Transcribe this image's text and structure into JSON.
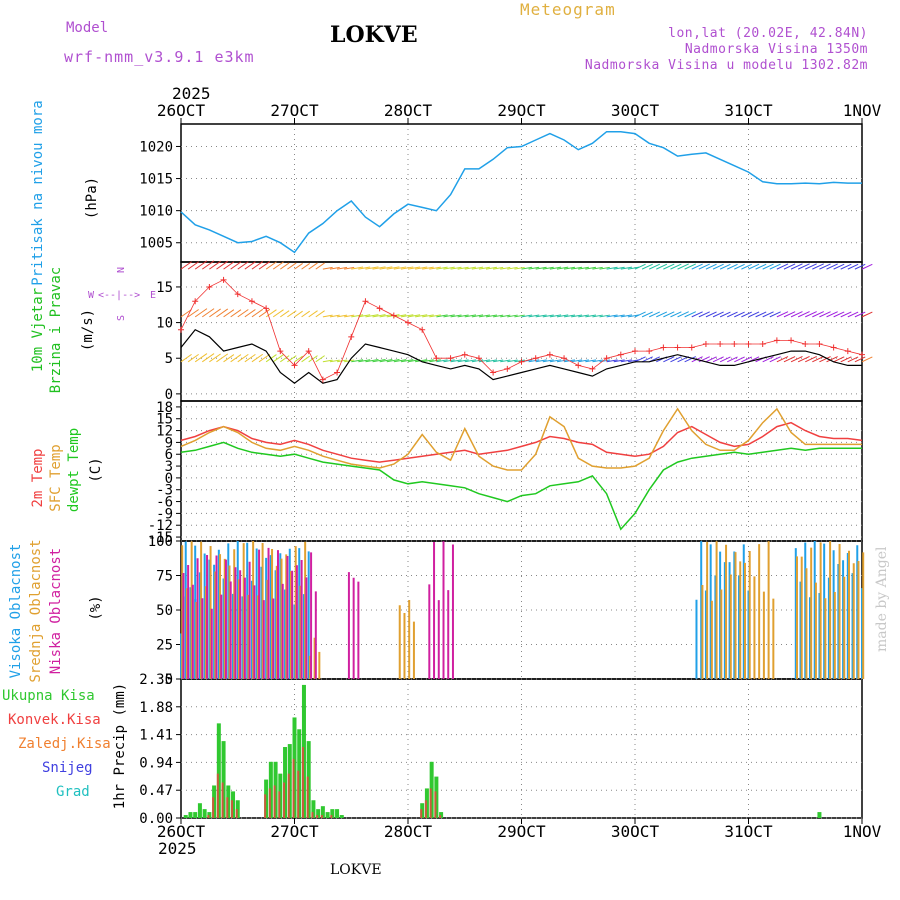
{
  "header": {
    "model_label": "Model",
    "model_name": "wrf-nmm_v3.9.1 e3km",
    "station": "LOKVE",
    "product": "Meteogram",
    "lonlat": "lon,lat (20.02E, 42.84N)",
    "elevation": "Nadmorska Visina 1350m",
    "model_elevation": "Nadmorska Visina u modelu 1302.82m",
    "year_top": "2025",
    "year_bottom": "2025",
    "footer_station": "LOKVE",
    "credit": "made by Angel"
  },
  "colors": {
    "pressure": "#20a0e8",
    "wind_speed_line": "#000000",
    "gust_marker": "#f03030",
    "t2m": "#f04040",
    "sfc": "#e0a030",
    "dewpt": "#20c820",
    "cloud_high": "#20a0e8",
    "cloud_mid": "#e0a030",
    "cloud_low": "#d020a0",
    "precip_total": "#30c830",
    "precip_conv": "#f04040",
    "precip_freeze": "#f08030",
    "precip_snow": "#4040e0",
    "precip_hail": "#20c0c0"
  },
  "chart_data": [
    {
      "type": "line",
      "panel": "pressure",
      "title": "Pritisak na nivou mora",
      "ylabel": "(hPa)",
      "x_ticks": [
        "26OCT",
        "27OCT",
        "28OCT",
        "29OCT",
        "30OCT",
        "31OCT",
        "1NOV"
      ],
      "yticks": [
        1005,
        1010,
        1015,
        1020
      ],
      "ylim": [
        1002,
        1023.5
      ],
      "x_hours": [
        0,
        3,
        6,
        9,
        12,
        15,
        18,
        21,
        24,
        27,
        30,
        33,
        36,
        39,
        42,
        45,
        48,
        51,
        54,
        57,
        60,
        63,
        66,
        69,
        72,
        75,
        78,
        81,
        84,
        87,
        90,
        93,
        96,
        99,
        102,
        105,
        108,
        111,
        114,
        117,
        120,
        123,
        126,
        129,
        132,
        135,
        138,
        141,
        144
      ],
      "values": [
        1009.8,
        1007.8,
        1007.0,
        1006.0,
        1005.0,
        1005.2,
        1006.0,
        1005.0,
        1003.5,
        1006.5,
        1008.0,
        1010.0,
        1011.5,
        1009.0,
        1007.5,
        1009.5,
        1011.0,
        1010.5,
        1010.0,
        1012.5,
        1016.5,
        1016.5,
        1018.0,
        1019.8,
        1020.0,
        1021.0,
        1022.0,
        1021.0,
        1019.5,
        1020.5,
        1022.3,
        1022.3,
        1022.0,
        1020.5,
        1019.8,
        1018.5,
        1018.8,
        1019.0,
        1018.0,
        1017.0,
        1016.0,
        1014.5,
        1014.2,
        1014.2,
        1014.3,
        1014.2,
        1014.4,
        1014.3,
        1014.3
      ]
    },
    {
      "type": "line",
      "panel": "wind",
      "title": "10m Vjetar Brzina i Pravac",
      "ylabel": "(m/s)",
      "yticks": [
        0,
        5,
        10,
        15
      ],
      "ylim": [
        -1,
        18.5
      ],
      "direction_legend": [
        "N",
        "W",
        "E",
        "S"
      ],
      "x_hours": [
        0,
        3,
        6,
        9,
        12,
        15,
        18,
        21,
        24,
        27,
        30,
        33,
        36,
        39,
        42,
        45,
        48,
        51,
        54,
        57,
        60,
        63,
        66,
        69,
        72,
        75,
        78,
        81,
        84,
        87,
        90,
        93,
        96,
        99,
        102,
        105,
        108,
        111,
        114,
        117,
        120,
        123,
        126,
        129,
        132,
        135,
        138,
        141,
        144
      ],
      "series": [
        {
          "name": "speed",
          "values": [
            6.5,
            9.0,
            8.0,
            6.0,
            6.5,
            7.0,
            6.0,
            3.0,
            1.5,
            3.0,
            1.5,
            2.0,
            5.0,
            7.0,
            6.5,
            6.0,
            5.5,
            4.5,
            4.0,
            3.5,
            4.0,
            3.5,
            2.0,
            2.5,
            3.0,
            3.5,
            4.0,
            3.5,
            3.0,
            2.5,
            3.5,
            4.0,
            4.5,
            4.5,
            5.0,
            5.5,
            5.0,
            4.5,
            4.0,
            4.0,
            4.5,
            5.0,
            5.5,
            6.0,
            6.0,
            5.5,
            4.5,
            4.0,
            4.0
          ]
        },
        {
          "name": "gust",
          "values": [
            9.0,
            13.0,
            15.0,
            16.0,
            14.0,
            13.0,
            12.0,
            6.0,
            4.0,
            6.0,
            2.0,
            3.0,
            8.0,
            13.0,
            12.0,
            11.0,
            10.0,
            9.0,
            5.0,
            5.0,
            5.5,
            5.0,
            3.0,
            3.5,
            4.5,
            5.0,
            5.5,
            5.0,
            4.0,
            3.5,
            5.0,
            5.5,
            6.0,
            6.0,
            6.5,
            6.5,
            6.5,
            7.0,
            7.0,
            7.0,
            7.0,
            7.0,
            7.5,
            7.5,
            7.0,
            7.0,
            6.5,
            6.0,
            5.5
          ]
        }
      ]
    },
    {
      "type": "line",
      "panel": "temperature",
      "titles": [
        "2m Temp",
        "SFC Temp",
        "dewpt Temp"
      ],
      "ylabel": "(C)",
      "yticks": [
        -15,
        -12,
        -9,
        -6,
        -3,
        0,
        3,
        6,
        9,
        12,
        15,
        18
      ],
      "ylim": [
        -16,
        19.5
      ],
      "x_hours": [
        0,
        3,
        6,
        9,
        12,
        15,
        18,
        21,
        24,
        27,
        30,
        33,
        36,
        39,
        42,
        45,
        48,
        51,
        54,
        57,
        60,
        63,
        66,
        69,
        72,
        75,
        78,
        81,
        84,
        87,
        90,
        93,
        96,
        99,
        102,
        105,
        108,
        111,
        114,
        117,
        120,
        123,
        126,
        129,
        132,
        135,
        138,
        141,
        144
      ],
      "series": [
        {
          "name": "2m Temp",
          "values": [
            9.5,
            10.5,
            12.0,
            13.0,
            12.0,
            10.0,
            9.0,
            8.5,
            9.5,
            8.5,
            7.0,
            6.0,
            5.0,
            4.5,
            4.0,
            4.5,
            5.0,
            5.5,
            6.0,
            6.5,
            7.0,
            6.0,
            6.5,
            7.0,
            8.0,
            9.0,
            10.5,
            10.0,
            9.0,
            8.5,
            6.5,
            6.0,
            5.5,
            6.0,
            8.0,
            11.5,
            13.0,
            11.0,
            9.0,
            8.0,
            8.5,
            10.5,
            13.0,
            14.0,
            12.0,
            10.5,
            10.0,
            10.0,
            9.5
          ]
        },
        {
          "name": "SFC Temp",
          "values": [
            8.0,
            9.5,
            11.5,
            13.0,
            11.5,
            9.0,
            7.5,
            7.0,
            8.0,
            7.0,
            5.5,
            4.5,
            3.5,
            3.0,
            2.5,
            3.5,
            6.0,
            11.0,
            6.5,
            4.5,
            12.5,
            5.5,
            3.0,
            2.0,
            2.0,
            6.0,
            15.5,
            13.0,
            5.0,
            3.0,
            2.5,
            2.5,
            3.0,
            5.0,
            12.0,
            17.5,
            12.0,
            8.5,
            7.0,
            7.0,
            9.5,
            14.0,
            17.5,
            11.5,
            8.5,
            8.5,
            8.5,
            8.5,
            8.5
          ]
        },
        {
          "name": "dewpt Temp",
          "values": [
            6.5,
            7.0,
            8.0,
            9.0,
            7.5,
            6.5,
            6.0,
            5.5,
            6.0,
            5.0,
            4.0,
            3.5,
            3.0,
            2.5,
            2.0,
            -0.5,
            -1.5,
            -1.0,
            -1.5,
            -2.0,
            -2.5,
            -4.0,
            -5.0,
            -6.0,
            -4.5,
            -4.0,
            -2.0,
            -1.5,
            -1.0,
            0.5,
            -4.0,
            -13.0,
            -9.0,
            -3.0,
            2.0,
            4.0,
            5.0,
            5.5,
            6.0,
            6.5,
            6.0,
            6.5,
            7.0,
            7.5,
            7.0,
            7.5,
            7.5,
            7.5,
            7.5
          ]
        }
      ]
    },
    {
      "type": "bar",
      "panel": "clouds",
      "titles": [
        "Visoka Oblacnost",
        "Srednja Oblacnost",
        "Niska Oblacnost"
      ],
      "ylabel": "(%)",
      "yticks": [
        0,
        25,
        50,
        75,
        100
      ],
      "ylim": [
        0,
        100
      ],
      "x_range_hours": [
        0,
        144
      ],
      "high_periods_hours": [
        [
          0,
          3,
          60
        ],
        [
          1,
          13,
          100
        ],
        [
          14,
          20,
          100
        ],
        [
          21,
          27,
          95
        ],
        [
          109,
          120,
          100
        ],
        [
          130,
          144,
          100
        ]
      ],
      "mid_periods_hours": [
        [
          0,
          13,
          100
        ],
        [
          14,
          26,
          100
        ],
        [
          27,
          29,
          30
        ],
        [
          46,
          49,
          60
        ],
        [
          110,
          125,
          100
        ],
        [
          130,
          144,
          100
        ]
      ],
      "low_periods_hours": [
        [
          0,
          14,
          90
        ],
        [
          15,
          28,
          95
        ],
        [
          35,
          37,
          85
        ],
        [
          52,
          57,
          100
        ]
      ]
    },
    {
      "type": "bar",
      "panel": "precip",
      "titles": [
        "Ukupna Kisa",
        "Konvek.Kisa",
        "Zaledj.Kisa",
        "Snijeg",
        "Grad"
      ],
      "ylabel": "1hr Precip (mm)",
      "yticks": [
        0,
        0.47,
        0.94,
        1.41,
        1.88,
        2.35
      ],
      "ylim": [
        0,
        2.35
      ],
      "x_hours": [
        1,
        2,
        3,
        4,
        5,
        6,
        7,
        8,
        9,
        10,
        11,
        12,
        18,
        19,
        20,
        21,
        22,
        23,
        24,
        25,
        26,
        27,
        28,
        29,
        30,
        31,
        32,
        33,
        34,
        51,
        52,
        53,
        54,
        55,
        135
      ],
      "total": [
        0.05,
        0.1,
        0.1,
        0.25,
        0.15,
        0.1,
        0.55,
        1.6,
        1.3,
        0.55,
        0.45,
        0.3,
        0.65,
        0.95,
        0.95,
        0.75,
        1.2,
        1.25,
        1.7,
        1.5,
        2.25,
        1.3,
        0.3,
        0.15,
        0.2,
        0.1,
        0.15,
        0.15,
        0.05,
        0.25,
        0.5,
        0.95,
        0.7,
        0.1,
        0.1
      ],
      "convective": [
        0.0,
        0.0,
        0.0,
        0.0,
        0.0,
        0.05,
        0.35,
        0.75,
        0.6,
        0.35,
        0.3,
        0.15,
        0.4,
        0.5,
        0.55,
        0.45,
        0.6,
        0.75,
        1.0,
        0.8,
        1.2,
        0.7,
        0.1,
        0.05,
        0.05,
        0.0,
        0.05,
        0.0,
        0.0,
        0.15,
        0.3,
        0.5,
        0.45,
        0.05,
        0.0
      ]
    }
  ]
}
